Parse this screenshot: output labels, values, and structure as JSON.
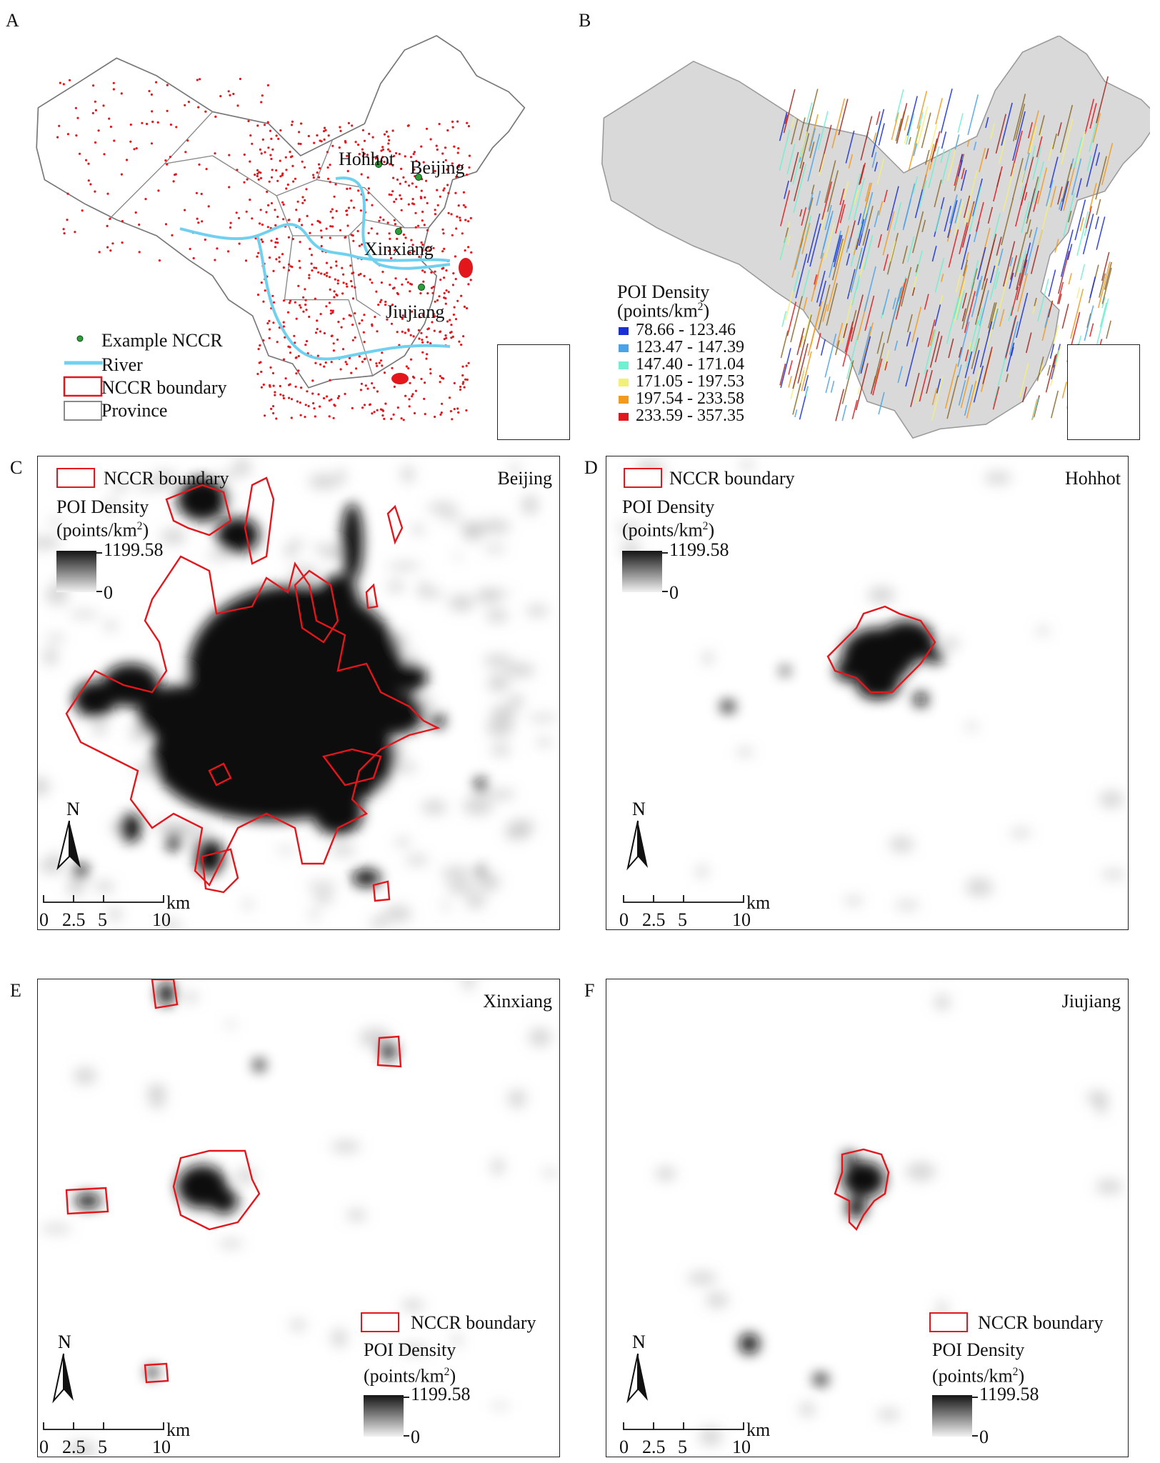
{
  "panel_labels": {
    "a": "A",
    "b": "B",
    "c": "C",
    "d": "D",
    "e": "E",
    "f": "F"
  },
  "map_a": {
    "cities": [
      "Hohhot",
      "Beijing",
      "Xinxiang",
      "Jiujiang"
    ],
    "legend": {
      "example": "Example NCCR",
      "river": "River",
      "boundary": "NCCR boundary",
      "province": "Province"
    },
    "colors": {
      "points": "#e3161c",
      "river": "#6fd0ef",
      "example": "#2e9e3a",
      "province": "#8a8a8a"
    }
  },
  "map_b": {
    "legend_title": "POI Density",
    "legend_unit": "(points/km",
    "legend_unit_sup": "2",
    "legend_unit_close": ")",
    "classes": [
      {
        "range": "78.66 - 123.46",
        "color": "#1a2fd6"
      },
      {
        "range": "123.47 - 147.39",
        "color": "#4aa3e8"
      },
      {
        "range": "147.40 - 171.04",
        "color": "#6ff0d0"
      },
      {
        "range": "171.05 - 197.53",
        "color": "#f3f07a"
      },
      {
        "range": "197.54 - 233.58",
        "color": "#f29a1e"
      },
      {
        "range": "233.59 - 357.35",
        "color": "#e3161c"
      }
    ]
  },
  "detail_legend": {
    "boundary": "NCCR boundary",
    "title": "POI Density",
    "unit": "(points/km",
    "unit_sup": "2",
    "unit_close": ")",
    "max": "1199.58",
    "min": "0"
  },
  "north": "N",
  "scale": {
    "ticks": [
      "0",
      "2.5",
      "5",
      "10"
    ],
    "unit": "km"
  },
  "panels": {
    "c": {
      "city": "Beijing"
    },
    "d": {
      "city": "Hohhot"
    },
    "e": {
      "city": "Xinxiang"
    },
    "f": {
      "city": "Jiujiang"
    }
  }
}
